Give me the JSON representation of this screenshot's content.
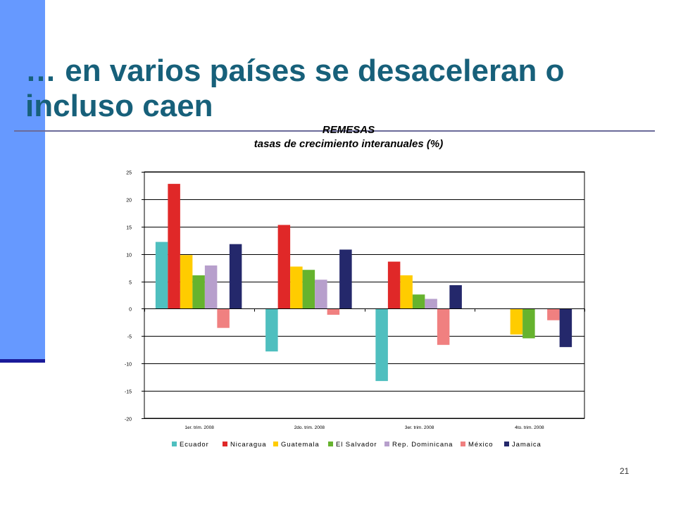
{
  "slide": {
    "title": "… en varios países se desaceleran o incluso caen",
    "page_number": "21"
  },
  "colors": {
    "title": "#17607a",
    "accent_bar": "#6699ff",
    "accent_bar_base": "#1a1a99",
    "rule": "#6b6b99"
  },
  "chart_data": {
    "type": "bar",
    "title": "REMESAS",
    "subtitle": "tasas de crecimiento interanuales (%)",
    "categories": [
      "1er. trim. 2008",
      "2do. trim. 2008",
      "3er. trim. 2008",
      "4to. trim. 2008"
    ],
    "ylim": [
      -20,
      25
    ],
    "yticks": [
      -20,
      -15,
      -10,
      -5,
      0,
      5,
      10,
      15,
      20,
      25
    ],
    "grid": true,
    "legend_position": "bottom",
    "series": [
      {
        "name": "Ecuador",
        "color": "#4fbfbf",
        "values": [
          12.2,
          -7.8,
          -13.2,
          null
        ]
      },
      {
        "name": "Nicaragua",
        "color": "#e02828",
        "values": [
          22.8,
          15.3,
          8.6,
          null
        ]
      },
      {
        "name": "Guatemala",
        "color": "#ffcc00",
        "values": [
          9.8,
          7.7,
          6.1,
          -4.7
        ]
      },
      {
        "name": "El Salvador",
        "color": "#66b32e",
        "values": [
          6.1,
          7.1,
          2.6,
          -5.4
        ]
      },
      {
        "name": "Rep. Dominicana",
        "color": "#b79fcc",
        "values": [
          7.9,
          5.3,
          1.8,
          null
        ]
      },
      {
        "name": "México",
        "color": "#f08080",
        "values": [
          -3.5,
          -1.1,
          -6.6,
          -2.1
        ]
      },
      {
        "name": "Jamaica",
        "color": "#24286b",
        "values": [
          11.8,
          10.8,
          4.3,
          -7.0
        ]
      }
    ]
  }
}
